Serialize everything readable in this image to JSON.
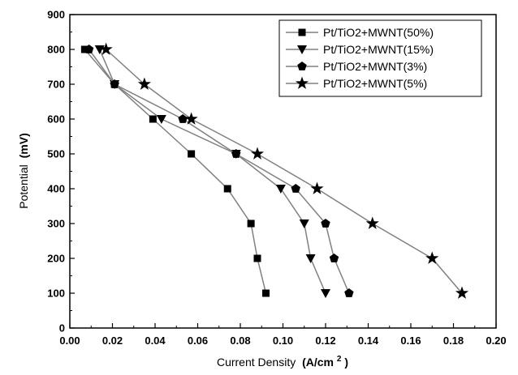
{
  "chart_data": {
    "type": "line",
    "xlabel": "Current Density",
    "xlabel_unit": "(A/cm",
    "xlabel_unit_exp": "2",
    "xlabel_unit_close": ")",
    "ylabel": "Potential",
    "ylabel_unit": "(mV)",
    "xlim": [
      0.0,
      0.2
    ],
    "ylim": [
      0,
      900
    ],
    "xticks": [
      "0.00",
      "0.02",
      "0.04",
      "0.06",
      "0.08",
      "0.10",
      "0.12",
      "0.14",
      "0.16",
      "0.18",
      "0.20"
    ],
    "yticks": [
      "0",
      "100",
      "200",
      "300",
      "400",
      "500",
      "600",
      "700",
      "800",
      "900"
    ],
    "grid": false,
    "legend_position": "top-right",
    "line_color": "#808080",
    "marker_color": "#000000",
    "series": [
      {
        "name": "Pt/TiO2+MWNT(50%)",
        "marker": "square",
        "x": [
          0.007,
          0.021,
          0.039,
          0.057,
          0.074,
          0.085,
          0.088,
          0.092
        ],
        "y": [
          800,
          700,
          600,
          500,
          400,
          300,
          200,
          100
        ]
      },
      {
        "name": "Pt/TiO2+MWNT(15%)",
        "marker": "triangle-down",
        "x": [
          0.014,
          0.021,
          0.043,
          0.078,
          0.099,
          0.11,
          0.113,
          0.12
        ],
        "y": [
          800,
          700,
          600,
          500,
          400,
          300,
          200,
          100
        ]
      },
      {
        "name": "Pt/TiO2+MWNT(3%)",
        "marker": "pentagon",
        "x": [
          0.009,
          0.021,
          0.053,
          0.078,
          0.106,
          0.12,
          0.124,
          0.131
        ],
        "y": [
          800,
          700,
          600,
          500,
          400,
          300,
          200,
          100
        ]
      },
      {
        "name": "Pt/TiO2+MWNT(5%)",
        "marker": "star",
        "x": [
          0.017,
          0.035,
          0.057,
          0.088,
          0.116,
          0.142,
          0.17,
          0.184
        ],
        "y": [
          800,
          700,
          600,
          500,
          400,
          300,
          200,
          100
        ]
      }
    ]
  }
}
